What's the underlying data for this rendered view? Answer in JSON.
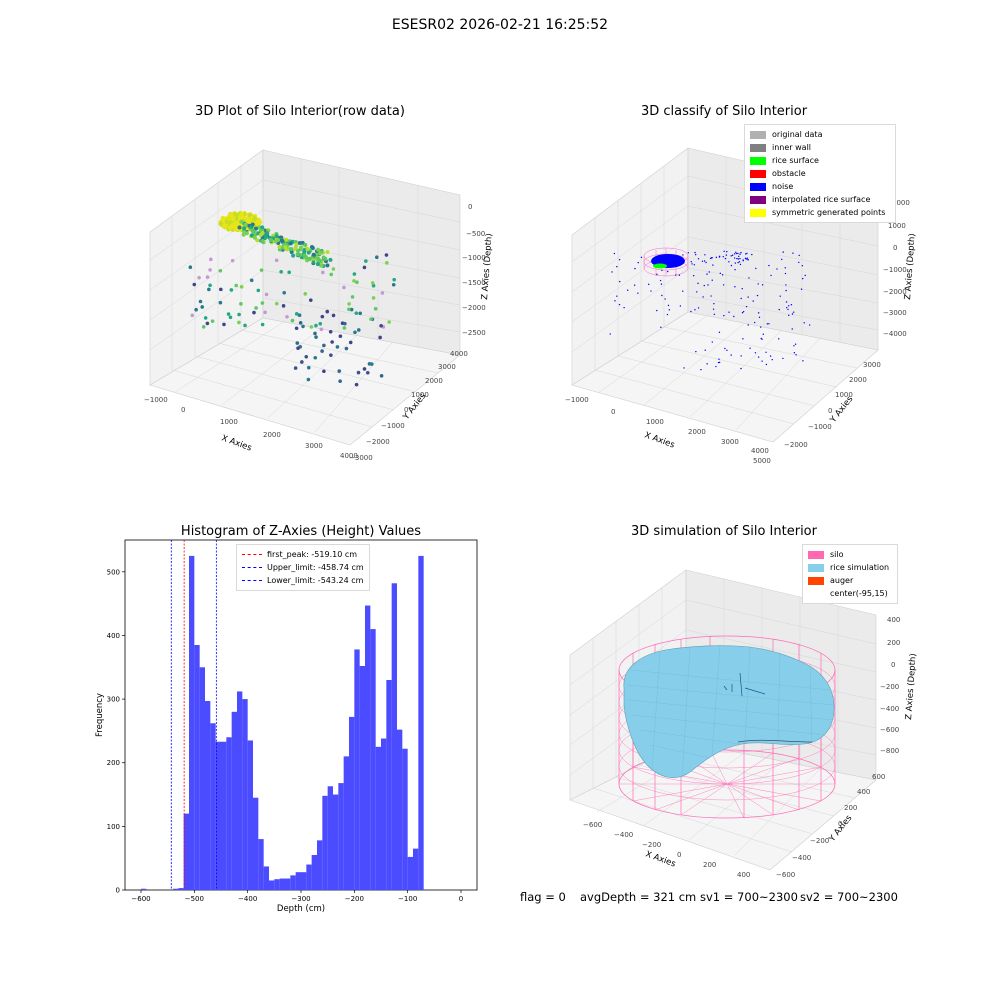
{
  "suptitle": "ESESR02 2026-02-21 16:25:52",
  "chart_data": [
    {
      "type": "scatter",
      "projection": "3d",
      "title": "3D Plot of Silo Interior(row data)",
      "xlabel": "X Axies",
      "ylabel": "Y Axies",
      "zlabel": "Z Axies (Depth)",
      "xticks": [
        "−1000",
        "0",
        "1000",
        "2000",
        "3000",
        "4000"
      ],
      "yticks": [
        "−3000",
        "−2000",
        "−1000",
        "0",
        "1000",
        "2000",
        "3000",
        "4000"
      ],
      "zticks": [
        "0",
        "−500",
        "−1000",
        "−1500",
        "−2000",
        "−2500"
      ],
      "colormap": "viridis (by depth)",
      "clusters": [
        {
          "label": "dense rice surface cluster",
          "x": -500,
          "y": 1500,
          "z": -400,
          "color": "#e3e418"
        },
        {
          "label": "scattered points",
          "x": 1500,
          "y": 500,
          "z": -1500,
          "color": "#22a884"
        },
        {
          "label": "deep points",
          "x": 2000,
          "y": -1000,
          "z": -2500,
          "color": "#414487"
        }
      ]
    },
    {
      "type": "scatter",
      "projection": "3d",
      "title": "3D classify of Silo Interior",
      "xlabel": "X Axies",
      "ylabel": "Y Axies",
      "zlabel": "Z Axies (Depth)",
      "xticks": [
        "−1000",
        "0",
        "1000",
        "2000",
        "3000",
        "4000",
        "5000"
      ],
      "yticks": [
        "−2000",
        "−1000",
        "0",
        "1000",
        "2000",
        "3000"
      ],
      "zticks": [
        "2000",
        "1000",
        "0",
        "−1000",
        "−2000",
        "−3000",
        "−4000"
      ],
      "legend": [
        {
          "label": "original data",
          "color": "#b0b0b0"
        },
        {
          "label": "inner wall",
          "color": "#808080"
        },
        {
          "label": "rice surface",
          "color": "#00ff00"
        },
        {
          "label": "obstacle",
          "color": "#ff0000"
        },
        {
          "label": "noise",
          "color": "#0000ff"
        },
        {
          "label": "interpolated rice surface",
          "color": "#800080"
        },
        {
          "label": "symmetric generated points",
          "color": "#ffff00"
        }
      ]
    },
    {
      "type": "bar",
      "title": "Histogram of Z-Axies (Height) Values",
      "xlabel": "Depth (cm)",
      "ylabel": "Frequency",
      "xlim": [
        -630,
        30
      ],
      "ylim": [
        0,
        550
      ],
      "xticks": [
        -600,
        -500,
        -400,
        -300,
        -200,
        -100,
        0
      ],
      "yticks": [
        0,
        100,
        200,
        300,
        400,
        500
      ],
      "bin_width": 10,
      "bin_starts": [
        -600,
        -590,
        -580,
        -570,
        -560,
        -550,
        -540,
        -530,
        -520,
        -510,
        -500,
        -490,
        -480,
        -470,
        -460,
        -450,
        -440,
        -430,
        -420,
        -410,
        -400,
        -390,
        -380,
        -370,
        -360,
        -350,
        -340,
        -330,
        -320,
        -310,
        -300,
        -290,
        -280,
        -270,
        -260,
        -250,
        -240,
        -230,
        -220,
        -210,
        -200,
        -190,
        -180,
        -170,
        -160,
        -150,
        -140,
        -130,
        -120,
        -110,
        -100,
        -90,
        -80,
        -70,
        -60,
        -50,
        -40,
        -30,
        -20,
        -10
      ],
      "values": [
        2,
        0,
        0,
        0,
        0,
        0,
        2,
        3,
        120,
        525,
        385,
        350,
        297,
        262,
        233,
        233,
        240,
        280,
        312,
        300,
        235,
        145,
        80,
        37,
        15,
        17,
        18,
        18,
        23,
        28,
        28,
        40,
        55,
        78,
        148,
        163,
        150,
        168,
        210,
        272,
        378,
        352,
        447,
        410,
        225,
        238,
        330,
        482,
        252,
        222,
        52,
        65,
        525,
        0,
        0,
        0,
        0,
        0,
        0,
        0
      ],
      "bar_color": "#4b4bff",
      "vlines": [
        {
          "label": "first_peak: -519.10 cm",
          "x": -519.1,
          "color": "#ff0000"
        },
        {
          "label": "Upper_limit: -458.74 cm",
          "x": -458.74,
          "color": "#0000ff"
        },
        {
          "label": "Lower_limit: -543.24 cm",
          "x": -543.24,
          "color": "#0000ff"
        }
      ]
    },
    {
      "type": "surface",
      "projection": "3d",
      "title": "3D simulation of Silo Interior",
      "xlabel": "X Axies",
      "ylabel": "Y Axies",
      "zlabel": "Z Axies (Depth)",
      "xticks": [
        "−600",
        "−400",
        "−200",
        "0",
        "200",
        "400"
      ],
      "yticks": [
        "−600",
        "−400",
        "−200",
        "0",
        "200",
        "400",
        "600"
      ],
      "zticks": [
        "400",
        "200",
        "0",
        "−200",
        "−400",
        "−600",
        "−800"
      ],
      "legend": [
        {
          "label": "silo",
          "color": "#ff69b4"
        },
        {
          "label": "rice simulation",
          "color": "#87ceeb"
        },
        {
          "label": "auger",
          "color": "#ff4500"
        },
        {
          "label": "center(-95,15)",
          "color": ""
        }
      ]
    }
  ],
  "footer": {
    "flag": "flag = 0",
    "avg": "avgDepth = 321 cm",
    "sv1": "sv1 = 700~2300",
    "sv2": "sv2 = 700~2300"
  }
}
